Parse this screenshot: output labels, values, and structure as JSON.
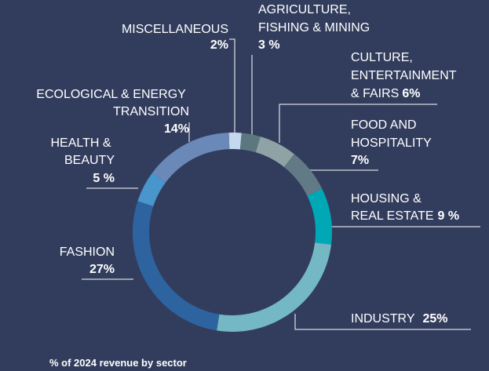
{
  "chart_data": {
    "type": "donut",
    "categories": [
      "MISCELLANEOUS",
      "AGRICULTURE, FISHING & MINING",
      "CULTURE, ENTERTAINMENT & FAIRS",
      "FOOD AND HOSPITALITY",
      "HOUSING & REAL ESTATE",
      "INDUSTRY",
      "FASHION",
      "HEALTH & BEAUTY",
      "ECOLOGICAL & ENERGY TRANSITION"
    ],
    "values": [
      2,
      3,
      6,
      7,
      9,
      25,
      27,
      5,
      14
    ],
    "value_labels": [
      "2%",
      "3 %",
      "6%",
      "7%",
      "9 %",
      "25%",
      "27%",
      "5 %",
      "14%"
    ],
    "colors": [
      "#c5d8ee",
      "#5d7780",
      "#8fa2a6",
      "#627a85",
      "#00a8b6",
      "#74b8c4",
      "#2d64a0",
      "#4896cb",
      "#6a89b8"
    ],
    "caption": "% of 2024 revenue by sector"
  }
}
